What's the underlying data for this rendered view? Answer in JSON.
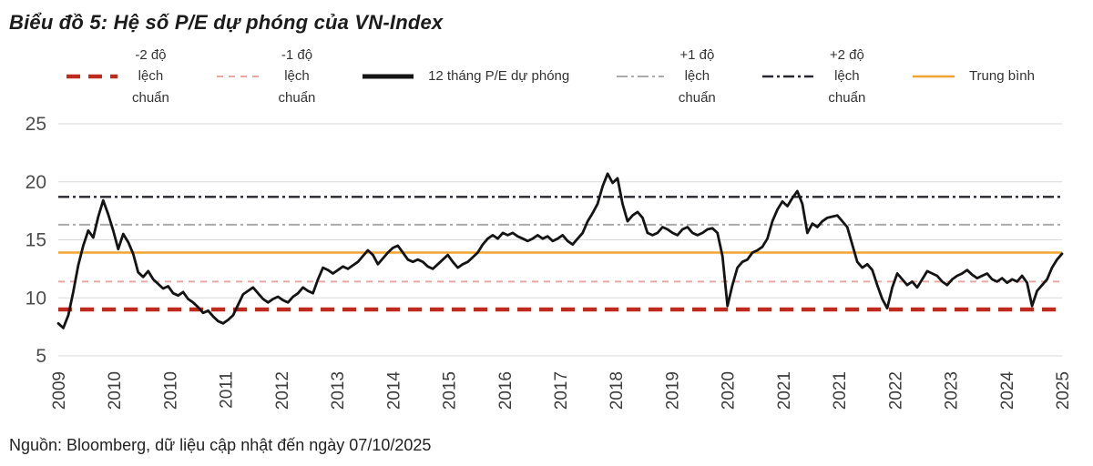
{
  "title": "Biểu đồ 5: Hệ số P/E dự phóng của VN-Index",
  "source": "Nguồn: Bloomberg, dữ liệu cập nhật đến ngày 07/10/2025",
  "legend": {
    "items": [
      {
        "label": "-2 độ\nlệch\nchuẩn",
        "color": "#bf2a1f",
        "width": 4.5,
        "dash": "15 9"
      },
      {
        "label": "-1 độ\nlệch\nchuẩn",
        "color": "#eba7a1",
        "width": 2,
        "dash": "7 6"
      },
      {
        "label": "12 tháng P/E dự phóng",
        "color": "#141414",
        "width": 5,
        "dash": ""
      },
      {
        "label": "+1 độ\nlệch\nchuẩn",
        "color": "#ababab",
        "width": 2,
        "dash": "12 4 3 4"
      },
      {
        "label": "+2 độ\nlệch\nchuẩn",
        "color": "#26262f",
        "width": 2.4,
        "dash": "12 4 3 4"
      },
      {
        "label": "Trung bình",
        "color": "#f0a532",
        "width": 2.6,
        "dash": ""
      }
    ]
  },
  "chart_data": {
    "type": "line",
    "title": "Hệ số P/E dự phóng của VN-Index",
    "xlabel": "",
    "ylabel": "",
    "ylim": [
      5,
      25
    ],
    "yticks": [
      5,
      10,
      15,
      20,
      25
    ],
    "grid": "horizontal",
    "legend_position": "top",
    "x_start": "2009-01",
    "x_end": "2025-10",
    "x_frequency": "monthly",
    "xtick_labels": [
      "2009",
      "2010",
      "2010",
      "2011",
      "2012",
      "2013",
      "2014",
      "2015",
      "2016",
      "2017",
      "2018",
      "2019",
      "2020",
      "2021",
      "2021",
      "2022",
      "2023",
      "2024",
      "2025"
    ],
    "series": [
      {
        "name": "12 tháng P/E dự phóng",
        "color": "#141414",
        "values": [
          7.8,
          7.4,
          8.5,
          10.5,
          12.8,
          14.5,
          15.8,
          15.2,
          17.0,
          18.4,
          17.2,
          15.8,
          14.2,
          15.5,
          14.8,
          13.8,
          12.2,
          11.8,
          12.3,
          11.6,
          11.2,
          10.8,
          11.0,
          10.4,
          10.2,
          10.5,
          9.9,
          9.6,
          9.2,
          8.7,
          8.9,
          8.4,
          8.0,
          7.8,
          8.1,
          8.5,
          9.4,
          10.3,
          10.6,
          10.9,
          10.4,
          9.9,
          9.6,
          9.9,
          10.1,
          9.8,
          9.6,
          10.1,
          10.4,
          10.9,
          10.6,
          10.4,
          11.6,
          12.6,
          12.4,
          12.1,
          12.4,
          12.7,
          12.5,
          12.8,
          13.1,
          13.6,
          14.1,
          13.7,
          12.9,
          13.4,
          13.9,
          14.3,
          14.5,
          13.9,
          13.3,
          13.1,
          13.3,
          13.1,
          12.7,
          12.5,
          12.9,
          13.3,
          13.7,
          13.1,
          12.6,
          12.9,
          13.1,
          13.5,
          13.9,
          14.6,
          15.1,
          15.4,
          15.1,
          15.6,
          15.4,
          15.6,
          15.3,
          15.1,
          14.9,
          15.1,
          15.4,
          15.1,
          15.3,
          14.9,
          15.1,
          15.4,
          14.9,
          14.6,
          15.1,
          15.6,
          16.6,
          17.3,
          18.1,
          19.6,
          20.7,
          19.9,
          20.3,
          18.1,
          16.6,
          17.1,
          17.4,
          16.9,
          15.6,
          15.4,
          15.6,
          16.1,
          15.9,
          15.6,
          15.4,
          15.9,
          16.1,
          15.6,
          15.4,
          15.6,
          15.9,
          16.0,
          15.6,
          13.6,
          9.3,
          11.1,
          12.6,
          13.1,
          13.3,
          13.9,
          14.1,
          14.4,
          15.1,
          16.6,
          17.6,
          18.3,
          17.9,
          18.6,
          19.2,
          18.1,
          15.6,
          16.4,
          16.1,
          16.6,
          16.9,
          17.0,
          17.1,
          16.6,
          16.1,
          14.6,
          13.1,
          12.6,
          12.9,
          12.4,
          11.1,
          9.9,
          9.1,
          10.9,
          12.1,
          11.6,
          11.1,
          11.4,
          10.9,
          11.6,
          12.3,
          12.1,
          11.9,
          11.4,
          11.1,
          11.6,
          11.9,
          12.1,
          12.4,
          12.0,
          11.7,
          11.9,
          12.1,
          11.6,
          11.4,
          11.7,
          11.3,
          11.6,
          11.4,
          11.9,
          11.3,
          9.3,
          10.6,
          11.1,
          11.6,
          12.6,
          13.3,
          13.8
        ]
      }
    ],
    "reference_lines": [
      {
        "name": "-2 độ lệch chuẩn",
        "value": 9.0,
        "color": "#bf2a1f",
        "width": 4.5,
        "dash": "15 9"
      },
      {
        "name": "-1 độ lệch chuẩn",
        "value": 11.4,
        "color": "#eba7a1",
        "width": 2,
        "dash": "7 6"
      },
      {
        "name": "Trung bình",
        "value": 13.9,
        "color": "#f0a532",
        "width": 2.6,
        "dash": ""
      },
      {
        "name": "+1 độ lệch chuẩn",
        "value": 16.3,
        "color": "#ababab",
        "width": 2,
        "dash": "12 4 3 4"
      },
      {
        "name": "+2 độ lệch chuẩn",
        "value": 18.7,
        "color": "#26262f",
        "width": 2.4,
        "dash": "12 4 3 4"
      }
    ]
  }
}
